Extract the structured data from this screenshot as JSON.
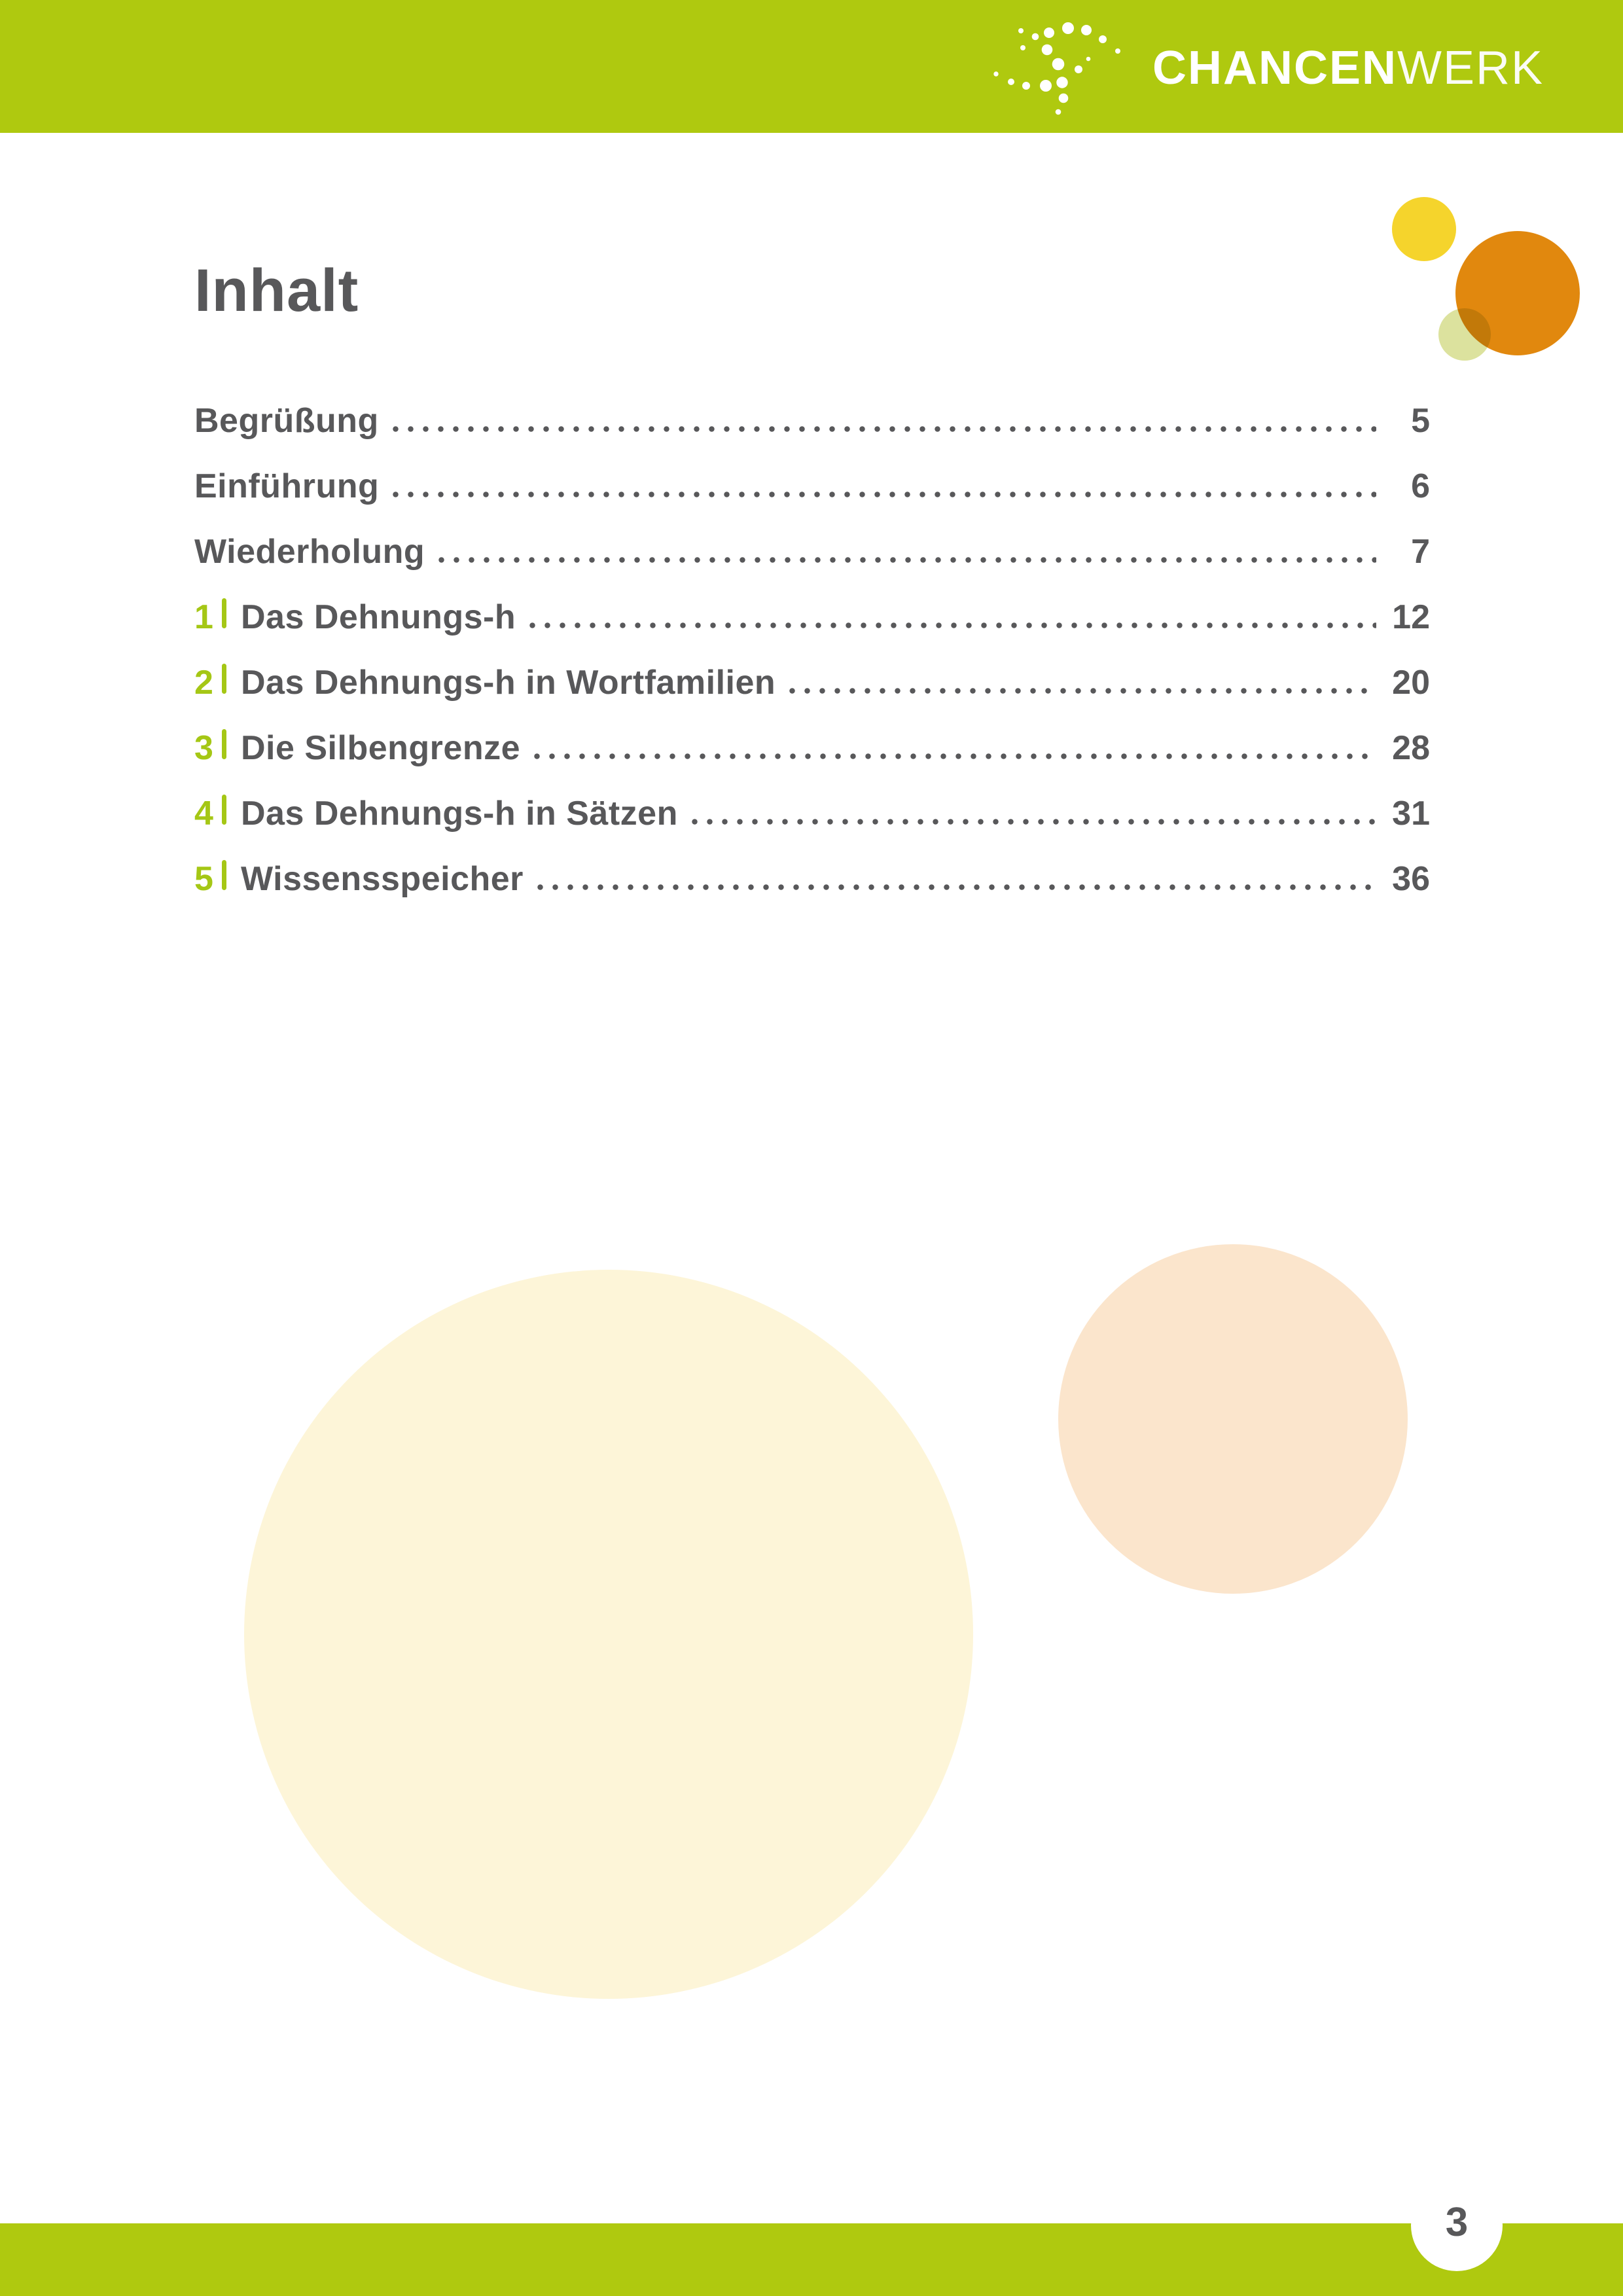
{
  "page": {
    "title": "Inhalt",
    "page_number": "3"
  },
  "logo": {
    "icon": "chancenwerk-dots-swirl-icon",
    "text_bold": "CHANCEN",
    "text_light": "WERK"
  },
  "toc": {
    "entries": [
      {
        "number": "",
        "title": "Begrüßung",
        "page": "5"
      },
      {
        "number": "",
        "title": "Einführung",
        "page": "6"
      },
      {
        "number": "",
        "title": "Wiederholung",
        "page": "7"
      },
      {
        "number": "1",
        "title": "Das Dehnungs-h",
        "page": "12"
      },
      {
        "number": "2",
        "title": "Das Dehnungs-h in Wortfamilien",
        "page": "20"
      },
      {
        "number": "3",
        "title": "Die Silbengrenze",
        "page": "28"
      },
      {
        "number": "4",
        "title": "Das Dehnungs-h in Sätzen",
        "page": "31"
      },
      {
        "number": "5",
        "title": "Wissensspeicher",
        "page": "36"
      }
    ]
  },
  "colors": {
    "brand_green": "#afc90f",
    "accent_green": "#a5c715",
    "text_gray": "#58585a",
    "circle_yellow": "#f5d42c",
    "circle_orange": "#e1880e",
    "circle_pale_green": "#dce29e",
    "circle_cream": "#fdf5d8",
    "circle_peach": "#fbe5cc"
  }
}
